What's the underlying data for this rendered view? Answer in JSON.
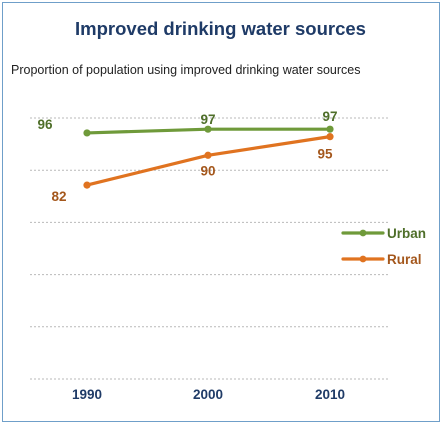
{
  "title": "Improved drinking water sources",
  "subtitle": "Proportion of population using improved drinking water sources",
  "chart_data": {
    "type": "line",
    "x": [
      "1990",
      "2000",
      "2010"
    ],
    "series": [
      {
        "name": "Urban",
        "values": [
          96,
          97,
          97
        ],
        "color": "#6f9a3a"
      },
      {
        "name": "Rural",
        "values": [
          82,
          90,
          95
        ],
        "color": "#e07320"
      }
    ],
    "value_label_colors": {
      "Urban": "#4f6f2a",
      "Rural": "#a4571c"
    },
    "ylim": [
      30,
      100
    ],
    "gridlines": [
      100,
      86,
      72,
      58,
      44,
      30
    ],
    "grid": true,
    "legend": "right"
  }
}
